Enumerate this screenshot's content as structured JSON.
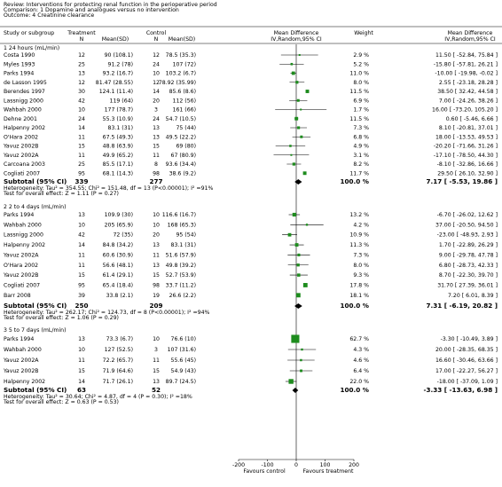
{
  "chart_data": {
    "type": "forest",
    "header": [
      "Review:  Interventions for protecting renal function in the perioperative period",
      "Comparison:  1 Dopamine and analogues versus no intervention",
      "Outcome:  4 Creatinine clearance"
    ],
    "columns": {
      "study": "Study or subgroup",
      "treatment": "Treatment",
      "treat_n": "N",
      "treat_msd": "Mean(SD)",
      "control": "Control",
      "ctrl_n": "N",
      "ctrl_msd": "Mean(SD)",
      "plot": "Mean Difference",
      "plot_sub": "IV,Random,95% CI",
      "weight": "Weight",
      "md": "Mean Difference",
      "md_sub": "IV,Random,95% CI"
    },
    "xlim": [
      -200,
      200
    ],
    "xticks": [
      -200,
      -100,
      0,
      100,
      200
    ],
    "x_labels": [
      "Favours control",
      "Favours treatment"
    ],
    "square_color": "#1e8c1e",
    "groups": [
      {
        "title": "1 24 hours (mL/min)",
        "studies": [
          {
            "name": "Costa 1990",
            "treat_n": 12,
            "treat_msd": "90 (108.1)",
            "ctrl_n": 12,
            "ctrl_msd": "78.5 (35.3)",
            "weight": 2.9,
            "weight_label": "2.9 %",
            "md": 11.5,
            "lo": -52.84,
            "hi": 75.84,
            "md_label": "11.50 [ -52.84, 75.84 ]"
          },
          {
            "name": "Myles 1993",
            "treat_n": 25,
            "treat_msd": "91.2 (78)",
            "ctrl_n": 24,
            "ctrl_msd": "107 (72)",
            "weight": 5.2,
            "weight_label": "5.2 %",
            "md": -15.8,
            "lo": -57.81,
            "hi": 26.21,
            "md_label": "-15.80 [ -57.81, 26.21 ]"
          },
          {
            "name": "Parks 1994",
            "treat_n": 13,
            "treat_msd": "93.2 (16.7)",
            "ctrl_n": 10,
            "ctrl_msd": "103.2 (6.7)",
            "weight": 11.0,
            "weight_label": "11.0 %",
            "md": -10.0,
            "lo": -19.98,
            "hi": -0.02,
            "md_label": "-10.00 [ -19.98, -0.02 ]"
          },
          {
            "name": "de Lasson 1995",
            "treat_n": 12,
            "treat_msd": "81.47 (28.55)",
            "ctrl_n": 12,
            "ctrl_msd": "78.92 (35.99)",
            "weight": 8.0,
            "weight_label": "8.0 %",
            "md": 2.55,
            "lo": -23.18,
            "hi": 28.28,
            "md_label": "2.55 [ -23.18, 28.28 ]"
          },
          {
            "name": "Berendes 1997",
            "treat_n": 30,
            "treat_msd": "124.1 (11.4)",
            "ctrl_n": 14,
            "ctrl_msd": "85.6 (8.6)",
            "weight": 11.5,
            "weight_label": "11.5 %",
            "md": 38.5,
            "lo": 32.42,
            "hi": 44.58,
            "md_label": "38.50 [ 32.42, 44.58 ]"
          },
          {
            "name": "Lassnigg 2000",
            "treat_n": 42,
            "treat_msd": "119 (64)",
            "ctrl_n": 20,
            "ctrl_msd": "112 (56)",
            "weight": 6.9,
            "weight_label": "6.9 %",
            "md": 7.0,
            "lo": -24.26,
            "hi": 38.26,
            "md_label": "7.00 [ -24.26, 38.26 ]"
          },
          {
            "name": "Wahbah 2000",
            "treat_n": 10,
            "treat_msd": "177 (78.7)",
            "ctrl_n": 3,
            "ctrl_msd": "161 (66)",
            "weight": 1.7,
            "weight_label": "1.7 %",
            "md": 16.0,
            "lo": -73.2,
            "hi": 105.2,
            "md_label": "16.00 [ -73.20, 105.20 ]"
          },
          {
            "name": "Dehne 2001",
            "treat_n": 24,
            "treat_msd": "55.3 (10.9)",
            "ctrl_n": 24,
            "ctrl_msd": "54.7 (10.5)",
            "weight": 11.5,
            "weight_label": "11.5 %",
            "md": 0.6,
            "lo": -5.46,
            "hi": 6.66,
            "md_label": "0.60 [ -5.46, 6.66 ]"
          },
          {
            "name": "Halpenny 2002",
            "treat_n": 14,
            "treat_msd": "83.1 (31)",
            "ctrl_n": 13,
            "ctrl_msd": "75 (44)",
            "weight": 7.3,
            "weight_label": "7.3 %",
            "md": 8.1,
            "lo": -20.81,
            "hi": 37.01,
            "md_label": "8.10 [ -20.81, 37.01 ]"
          },
          {
            "name": "O'Hara 2002",
            "treat_n": 11,
            "treat_msd": "67.5 (49.3)",
            "ctrl_n": 13,
            "ctrl_msd": "49.5 (22.2)",
            "weight": 6.8,
            "weight_label": "6.8 %",
            "md": 18.0,
            "lo": -13.53,
            "hi": 49.53,
            "md_label": "18.00 [ -13.53, 49.53 ]"
          },
          {
            "name": "Yavuz 2002B",
            "treat_n": 15,
            "treat_msd": "48.8 (63.9)",
            "ctrl_n": 15,
            "ctrl_msd": "69 (80)",
            "weight": 4.9,
            "weight_label": "4.9 %",
            "md": -20.2,
            "lo": -71.66,
            "hi": 31.26,
            "md_label": "-20.20 [ -71.66, 31.26 ]"
          },
          {
            "name": "Yavuz 2002A",
            "treat_n": 11,
            "treat_msd": "49.9 (65.2)",
            "ctrl_n": 11,
            "ctrl_msd": "67 (80.9)",
            "weight": 3.1,
            "weight_label": "3.1 %",
            "md": -17.1,
            "lo": -78.5,
            "hi": 44.3,
            "md_label": "-17.10 [ -78.50, 44.30 ]"
          },
          {
            "name": "Carcoana 2003",
            "treat_n": 25,
            "treat_msd": "85.5 (17.1)",
            "ctrl_n": 8,
            "ctrl_msd": "93.6 (34.4)",
            "weight": 8.2,
            "weight_label": "8.2 %",
            "md": -8.1,
            "lo": -32.86,
            "hi": 16.66,
            "md_label": "-8.10 [ -32.86, 16.66 ]"
          },
          {
            "name": "Cogliati 2007",
            "treat_n": 95,
            "treat_msd": "68.1 (14.3)",
            "ctrl_n": 98,
            "ctrl_msd": "38.6 (9.2)",
            "weight": 11.7,
            "weight_label": "11.7 %",
            "md": 29.5,
            "lo": 26.1,
            "hi": 32.9,
            "md_label": "29.50 [ 26.10, 32.90 ]"
          }
        ],
        "subtotal": {
          "name": "Subtotal (95% CI)",
          "treat_n": 339,
          "ctrl_n": 277,
          "weight_label": "100.0 %",
          "md": 7.17,
          "lo": -5.53,
          "hi": 19.86,
          "md_label": "7.17 [ -5.53, 19.86 ]"
        },
        "heterogeneity": "Heterogeneity: Tau² = 354.55; Chi² = 151.48, df = 13 (P<0.00001); I² =91%",
        "overall": "Test for overall effect: Z = 1.11 (P = 0.27)"
      },
      {
        "title": "2 2 to 4 days (mL/min)",
        "studies": [
          {
            "name": "Parks 1994",
            "treat_n": 13,
            "treat_msd": "109.9 (30)",
            "ctrl_n": 10,
            "ctrl_msd": "116.6 (16.7)",
            "weight": 13.2,
            "weight_label": "13.2 %",
            "md": -6.7,
            "lo": -26.02,
            "hi": 12.62,
            "md_label": "-6.70 [ -26.02, 12.62 ]"
          },
          {
            "name": "Wahbah 2000",
            "treat_n": 10,
            "treat_msd": "205 (65.9)",
            "ctrl_n": 10,
            "ctrl_msd": "168 (65.3)",
            "weight": 4.2,
            "weight_label": "4.2 %",
            "md": 37.0,
            "lo": -20.5,
            "hi": 94.5,
            "md_label": "37.00 [ -20.50, 94.50 ]"
          },
          {
            "name": "Lassnigg 2000",
            "treat_n": 42,
            "treat_msd": "72 (35)",
            "ctrl_n": 20,
            "ctrl_msd": "95 (54)",
            "weight": 10.9,
            "weight_label": "10.9 %",
            "md": -23.0,
            "lo": -48.93,
            "hi": 2.93,
            "md_label": "-23.00 [ -48.93, 2.93 ]"
          },
          {
            "name": "Halpenny 2002",
            "treat_n": 14,
            "treat_msd": "84.8 (34.2)",
            "ctrl_n": 13,
            "ctrl_msd": "83.1 (31)",
            "weight": 11.3,
            "weight_label": "11.3 %",
            "md": 1.7,
            "lo": -22.89,
            "hi": 26.29,
            "md_label": "1.70 [ -22.89, 26.29 ]"
          },
          {
            "name": "Yavuz 2002A",
            "treat_n": 11,
            "treat_msd": "60.6 (30.9)",
            "ctrl_n": 11,
            "ctrl_msd": "51.6 (57.9)",
            "weight": 7.3,
            "weight_label": "7.3 %",
            "md": 9.0,
            "lo": -29.78,
            "hi": 47.78,
            "md_label": "9.00 [ -29.78, 47.78 ]"
          },
          {
            "name": "O'Hara 2002",
            "treat_n": 11,
            "treat_msd": "56.6 (48.1)",
            "ctrl_n": 13,
            "ctrl_msd": "49.8 (39.2)",
            "weight": 8.0,
            "weight_label": "8.0 %",
            "md": 6.8,
            "lo": -28.73,
            "hi": 42.33,
            "md_label": "6.80 [ -28.73, 42.33 ]"
          },
          {
            "name": "Yavuz 2002B",
            "treat_n": 15,
            "treat_msd": "61.4 (29.1)",
            "ctrl_n": 15,
            "ctrl_msd": "52.7 (53.9)",
            "weight": 9.3,
            "weight_label": "9.3 %",
            "md": 8.7,
            "lo": -22.3,
            "hi": 39.7,
            "md_label": "8.70 [ -22.30, 39.70 ]"
          },
          {
            "name": "Cogliati 2007",
            "treat_n": 95,
            "treat_msd": "65.4 (18.4)",
            "ctrl_n": 98,
            "ctrl_msd": "33.7 (11.2)",
            "weight": 17.8,
            "weight_label": "17.8 %",
            "md": 31.7,
            "lo": 27.39,
            "hi": 36.01,
            "md_label": "31.70 [ 27.39, 36.01 ]"
          },
          {
            "name": "Barr 2008",
            "treat_n": 39,
            "treat_msd": "33.8 (2.1)",
            "ctrl_n": 19,
            "ctrl_msd": "26.6 (2.2)",
            "weight": 18.1,
            "weight_label": "18.1 %",
            "md": 7.2,
            "lo": 6.01,
            "hi": 8.39,
            "md_label": "7.20 [ 6.01, 8.39 ]"
          }
        ],
        "subtotal": {
          "name": "Subtotal (95% CI)",
          "treat_n": 250,
          "ctrl_n": 209,
          "weight_label": "100.0 %",
          "md": 7.31,
          "lo": -6.19,
          "hi": 20.82,
          "md_label": "7.31 [ -6.19, 20.82 ]"
        },
        "heterogeneity": "Heterogeneity: Tau² = 262.17; Chi² = 124.73, df = 8 (P<0.00001); I² =94%",
        "overall": "Test for overall effect: Z = 1.06 (P = 0.29)"
      },
      {
        "title": "3 5 to 7 days (mL/min)",
        "studies": [
          {
            "name": "Parks 1994",
            "treat_n": 13,
            "treat_msd": "73.3 (6.7)",
            "ctrl_n": 10,
            "ctrl_msd": "76.6 (10)",
            "weight": 62.7,
            "weight_label": "62.7 %",
            "md": -3.3,
            "lo": -10.49,
            "hi": 3.89,
            "md_label": "-3.30 [ -10.49, 3.89 ]"
          },
          {
            "name": "Wahbah 2000",
            "treat_n": 10,
            "treat_msd": "127 (52.5)",
            "ctrl_n": 3,
            "ctrl_msd": "107 (31.6)",
            "weight": 4.3,
            "weight_label": "4.3 %",
            "md": 20.0,
            "lo": -28.35,
            "hi": 68.35,
            "md_label": "20.00 [ -28.35, 68.35 ]"
          },
          {
            "name": "Yavuz 2002A",
            "treat_n": 11,
            "treat_msd": "72.2 (65.7)",
            "ctrl_n": 11,
            "ctrl_msd": "55.6 (45)",
            "weight": 4.6,
            "weight_label": "4.6 %",
            "md": 16.6,
            "lo": -30.46,
            "hi": 63.66,
            "md_label": "16.60 [ -30.46, 63.66 ]"
          },
          {
            "name": "Yavuz 2002B",
            "treat_n": 15,
            "treat_msd": "71.9 (64.6)",
            "ctrl_n": 15,
            "ctrl_msd": "54.9 (43)",
            "weight": 6.4,
            "weight_label": "6.4 %",
            "md": 17.0,
            "lo": -22.27,
            "hi": 56.27,
            "md_label": "17.00 [ -22.27, 56.27 ]"
          },
          {
            "name": "Halpenny 2002",
            "treat_n": 14,
            "treat_msd": "71.7 (26.1)",
            "ctrl_n": 13,
            "ctrl_msd": "89.7 (24.5)",
            "weight": 22.0,
            "weight_label": "22.0 %",
            "md": -18.0,
            "lo": -37.09,
            "hi": 1.09,
            "md_label": "-18.00 [ -37.09, 1.09 ]"
          }
        ],
        "subtotal": {
          "name": "Subtotal (95% CI)",
          "treat_n": 63,
          "ctrl_n": 52,
          "weight_label": "100.0 %",
          "md": -3.33,
          "lo": -13.63,
          "hi": 6.98,
          "md_label": "-3.33 [ -13.63, 6.98 ]"
        },
        "heterogeneity": "Heterogeneity: Tau² = 30.64; Chi² = 4.87, df = 4 (P = 0.30); I² =18%",
        "overall": "Test for overall effect: Z = 0.63 (P = 0.53)"
      }
    ]
  }
}
